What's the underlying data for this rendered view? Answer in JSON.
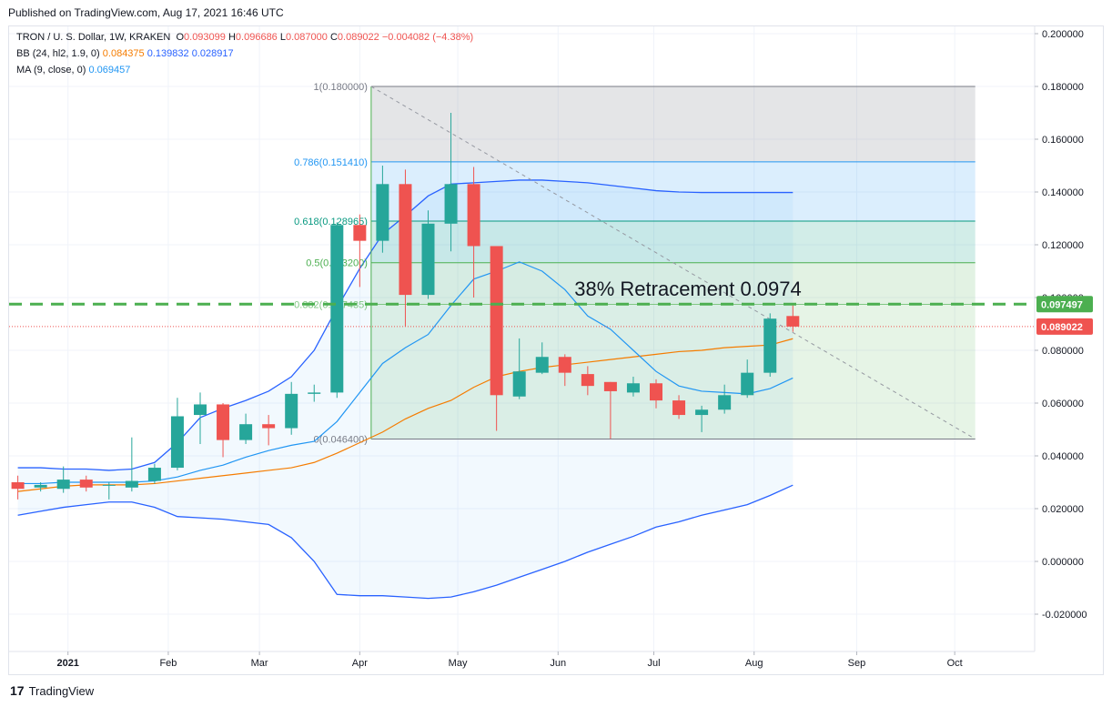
{
  "header": {
    "published": "Published on TradingView.com, Aug 17, 2021 16:46 UTC"
  },
  "legend": {
    "symbol": "TRON / U. S. Dollar, 1W, KRAKEN",
    "o_label": "O",
    "o_value": "0.093099",
    "h_label": "H",
    "h_value": "0.096686",
    "l_label": "L",
    "l_value": "0.087000",
    "c_label": "C",
    "c_value": "0.089022",
    "change": "−0.004082 (−4.38%)",
    "bb_label": "BB (24, hl2, 1.9, 0)",
    "bb_basis": "0.084375",
    "bb_upper": "0.139832",
    "bb_lower": "0.028917",
    "ma_label": "MA (9, close, 0)",
    "ma_value": "0.069457"
  },
  "footer": {
    "brand": "TradingView",
    "logo_glyph": "17"
  },
  "colors": {
    "up": "#26a69a",
    "down": "#ef5350",
    "bb_basis": "#f57c00",
    "bb_band": "#2962ff",
    "ma": "#2196f3",
    "retracement": "#4caf50"
  },
  "chart_data": {
    "type": "candlestick",
    "ylim": [
      -0.025,
      0.205
    ],
    "y_ticks": [
      "0.200000",
      "0.180000",
      "0.160000",
      "0.140000",
      "0.120000",
      "0.100000",
      "0.080000",
      "0.060000",
      "0.040000",
      "0.020000",
      "0.000000",
      "-0.020000"
    ],
    "x_ticks": [
      {
        "label": "2021",
        "bold": true,
        "week": 2.2
      },
      {
        "label": "Feb",
        "week": 6.6
      },
      {
        "label": "Mar",
        "week": 10.6
      },
      {
        "label": "Apr",
        "week": 15.0
      },
      {
        "label": "May",
        "week": 19.3
      },
      {
        "label": "Jun",
        "week": 23.7
      },
      {
        "label": "Jul",
        "week": 27.9
      },
      {
        "label": "Aug",
        "week": 32.3
      },
      {
        "label": "Sep",
        "week": 36.8
      },
      {
        "label": "Oct",
        "week": 41.1
      }
    ],
    "candles": [
      {
        "o": 0.03,
        "h": 0.0325,
        "l": 0.0235,
        "c": 0.0275
      },
      {
        "o": 0.028,
        "h": 0.03,
        "l": 0.0265,
        "c": 0.029
      },
      {
        "o": 0.0275,
        "h": 0.036,
        "l": 0.026,
        "c": 0.031
      },
      {
        "o": 0.031,
        "h": 0.0325,
        "l": 0.0265,
        "c": 0.028
      },
      {
        "o": 0.029,
        "h": 0.03,
        "l": 0.0235,
        "c": 0.029
      },
      {
        "o": 0.028,
        "h": 0.047,
        "l": 0.0265,
        "c": 0.0305
      },
      {
        "o": 0.0305,
        "h": 0.037,
        "l": 0.0295,
        "c": 0.0355
      },
      {
        "o": 0.0355,
        "h": 0.062,
        "l": 0.0345,
        "c": 0.055
      },
      {
        "o": 0.0555,
        "h": 0.064,
        "l": 0.0445,
        "c": 0.0595
      },
      {
        "o": 0.0595,
        "h": 0.06,
        "l": 0.0395,
        "c": 0.046
      },
      {
        "o": 0.046,
        "h": 0.056,
        "l": 0.0445,
        "c": 0.052
      },
      {
        "o": 0.052,
        "h": 0.0555,
        "l": 0.044,
        "c": 0.0505
      },
      {
        "o": 0.0505,
        "h": 0.068,
        "l": 0.048,
        "c": 0.0635
      },
      {
        "o": 0.0635,
        "h": 0.067,
        "l": 0.0605,
        "c": 0.064
      },
      {
        "o": 0.064,
        "h": 0.1285,
        "l": 0.062,
        "c": 0.1275
      },
      {
        "o": 0.1275,
        "h": 0.1315,
        "l": 0.104,
        "c": 0.1215
      },
      {
        "o": 0.1215,
        "h": 0.15,
        "l": 0.117,
        "c": 0.143
      },
      {
        "o": 0.143,
        "h": 0.1485,
        "l": 0.089,
        "c": 0.101
      },
      {
        "o": 0.101,
        "h": 0.133,
        "l": 0.0995,
        "c": 0.128
      },
      {
        "o": 0.128,
        "h": 0.17,
        "l": 0.1175,
        "c": 0.143
      },
      {
        "o": 0.143,
        "h": 0.1495,
        "l": 0.1,
        "c": 0.1195
      },
      {
        "o": 0.1195,
        "h": 0.1195,
        "l": 0.0495,
        "c": 0.063
      },
      {
        "o": 0.0625,
        "h": 0.0845,
        "l": 0.0615,
        "c": 0.072
      },
      {
        "o": 0.0715,
        "h": 0.083,
        "l": 0.071,
        "c": 0.0775
      },
      {
        "o": 0.0775,
        "h": 0.0785,
        "l": 0.0665,
        "c": 0.0715
      },
      {
        "o": 0.071,
        "h": 0.074,
        "l": 0.063,
        "c": 0.0665
      },
      {
        "o": 0.068,
        "h": 0.068,
        "l": 0.0465,
        "c": 0.0645
      },
      {
        "o": 0.064,
        "h": 0.07,
        "l": 0.0625,
        "c": 0.0675
      },
      {
        "o": 0.0675,
        "h": 0.069,
        "l": 0.058,
        "c": 0.061
      },
      {
        "o": 0.061,
        "h": 0.063,
        "l": 0.054,
        "c": 0.0555
      },
      {
        "o": 0.0555,
        "h": 0.059,
        "l": 0.049,
        "c": 0.0575
      },
      {
        "o": 0.0575,
        "h": 0.067,
        "l": 0.056,
        "c": 0.063
      },
      {
        "o": 0.063,
        "h": 0.0765,
        "l": 0.062,
        "c": 0.0715
      },
      {
        "o": 0.0715,
        "h": 0.094,
        "l": 0.07,
        "c": 0.092
      },
      {
        "o": 0.093,
        "h": 0.097,
        "l": 0.087,
        "c": 0.089
      }
    ],
    "bb_basis": [
      0.0265,
      0.0275,
      0.0285,
      0.029,
      0.029,
      0.029,
      0.0295,
      0.0305,
      0.0315,
      0.0325,
      0.0335,
      0.0345,
      0.0355,
      0.0375,
      0.041,
      0.045,
      0.049,
      0.054,
      0.058,
      0.061,
      0.066,
      0.07,
      0.072,
      0.0735,
      0.0745,
      0.0755,
      0.0765,
      0.0775,
      0.0785,
      0.0795,
      0.08,
      0.081,
      0.0815,
      0.082,
      0.0844
    ],
    "bb_upper": [
      0.0355,
      0.0355,
      0.035,
      0.035,
      0.0345,
      0.035,
      0.0375,
      0.045,
      0.0545,
      0.058,
      0.061,
      0.0645,
      0.07,
      0.08,
      0.096,
      0.111,
      0.124,
      0.131,
      0.1385,
      0.143,
      0.1435,
      0.144,
      0.1445,
      0.1445,
      0.144,
      0.1435,
      0.1425,
      0.1415,
      0.1405,
      0.14,
      0.1398,
      0.1398,
      0.1398,
      0.1398,
      0.1398
    ],
    "bb_lower": [
      0.0175,
      0.019,
      0.0205,
      0.0215,
      0.0225,
      0.0225,
      0.0205,
      0.017,
      0.0165,
      0.016,
      0.015,
      0.014,
      0.009,
      0.0,
      -0.0125,
      -0.013,
      -0.013,
      -0.0135,
      -0.014,
      -0.0135,
      -0.0115,
      -0.009,
      -0.006,
      -0.003,
      0.0,
      0.0035,
      0.0065,
      0.0095,
      0.013,
      0.015,
      0.0175,
      0.0195,
      0.0215,
      0.025,
      0.0289
    ],
    "ma": [
      0.0295,
      0.0295,
      0.03,
      0.03,
      0.03,
      0.03,
      0.0305,
      0.032,
      0.0345,
      0.0365,
      0.0395,
      0.042,
      0.044,
      0.0455,
      0.053,
      0.064,
      0.075,
      0.081,
      0.086,
      0.097,
      0.107,
      0.11,
      0.1135,
      0.11,
      0.103,
      0.093,
      0.088,
      0.08,
      0.072,
      0.0665,
      0.0645,
      0.064,
      0.0635,
      0.0655,
      0.0695
    ],
    "fib": {
      "levels": [
        {
          "label": "1(0.180000)",
          "value": 0.18,
          "color": "#787b86"
        },
        {
          "label": "0.786(0.151410)",
          "value": 0.15141,
          "color": "#2196f3"
        },
        {
          "label": "0.618(0.128965)",
          "value": 0.128965,
          "color": "#089981"
        },
        {
          "label": "0.5(0.113200)",
          "value": 0.1132,
          "color": "#4caf50"
        },
        {
          "label": "0.382(0.097435)",
          "value": 0.097435,
          "color": "#81c784"
        },
        {
          "label": "0(0.046400)",
          "value": 0.0464,
          "color": "#787b86"
        }
      ],
      "start_week": 15.5,
      "end_week": 42.0,
      "trend_line": [
        {
          "week": 15.5,
          "value": 0.18
        },
        {
          "week": 42.0,
          "value": 0.0464
        }
      ]
    },
    "annotation": "38% Retracement 0.0974",
    "retracement_level": 0.097497,
    "price_labels": [
      {
        "label": "0.097497",
        "value": 0.097497,
        "color": "#4caf50"
      },
      {
        "label": "0.089022",
        "value": 0.089022,
        "color": "#ef5350"
      }
    ],
    "current_price": 0.089022
  }
}
